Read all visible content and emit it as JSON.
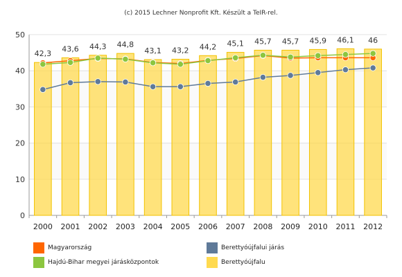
{
  "credit": "(c) 2015 Lechner Nonprofit Kft. Készült a TeIR-rel.",
  "chart_data": {
    "type": "bar",
    "categories": [
      "2000",
      "2001",
      "2002",
      "2003",
      "2004",
      "2005",
      "2006",
      "2007",
      "2008",
      "2009",
      "2010",
      "2011",
      "2012"
    ],
    "ylim": [
      0,
      50
    ],
    "yticks": [
      0,
      10,
      20,
      30,
      40,
      50
    ],
    "grid": true,
    "legend_position": "bottom",
    "series": [
      {
        "name": "Berettyóújfalu",
        "type": "bar",
        "color": "#FFDA4F",
        "values": [
          42.3,
          43.6,
          44.3,
          44.8,
          43.1,
          43.2,
          44.2,
          45.1,
          45.7,
          45.7,
          45.9,
          46.1,
          46
        ],
        "data_labels": [
          "42,3",
          "43,6",
          "44,3",
          "44,8",
          "43,1",
          "43,2",
          "44,2",
          "45,1",
          "45,7",
          "45,7",
          "45,9",
          "46,1",
          "46"
        ]
      },
      {
        "name": "Magyarország",
        "type": "line",
        "color": "#FF6600",
        "values": [
          42.2,
          42.8,
          43.4,
          43.3,
          42.3,
          42.0,
          42.9,
          43.4,
          44.2,
          43.5,
          43.6,
          43.6,
          43.6
        ]
      },
      {
        "name": "Hajdú-Bihar megyei járásközpontok",
        "type": "line",
        "color": "#8CC63F",
        "values": [
          41.8,
          42.3,
          43.5,
          43.2,
          42.2,
          41.8,
          42.8,
          43.6,
          44.3,
          43.8,
          44.2,
          44.5,
          44.8
        ]
      },
      {
        "name": "Berettyóújfalui járás",
        "type": "line",
        "color": "#5F7A99",
        "values": [
          34.8,
          36.7,
          37.0,
          36.9,
          35.6,
          35.6,
          36.5,
          36.9,
          38.2,
          38.7,
          39.5,
          40.3,
          40.8
        ]
      }
    ]
  },
  "legend": {
    "items": [
      {
        "label": "Magyarország",
        "color": "#FF6600"
      },
      {
        "label": "Berettyóújfalui járás",
        "color": "#5F7A99"
      },
      {
        "label": "Hajdú-Bihar megyei járásközpontok",
        "color": "#8CC63F"
      },
      {
        "label": "Berettyóújfalu",
        "color": "#FFDA4F"
      }
    ]
  }
}
